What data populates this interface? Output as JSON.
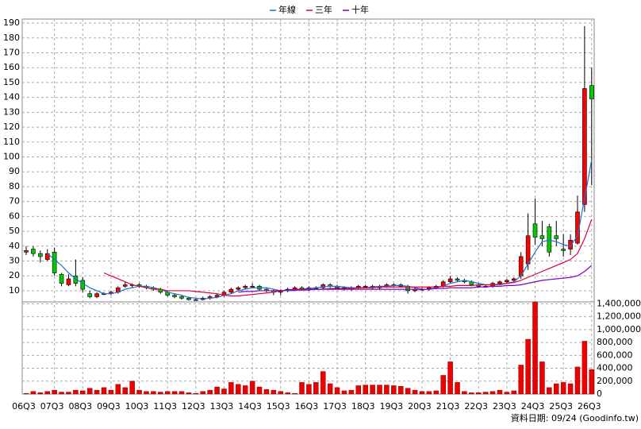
{
  "chart_data": {
    "type": "candlestick",
    "categories": [
      "06Q3",
      null,
      null,
      null,
      "07Q3",
      null,
      null,
      null,
      "08Q3",
      null,
      null,
      null,
      "09Q3",
      null,
      null,
      null,
      "10Q3",
      null,
      null,
      null,
      "11Q3",
      null,
      null,
      null,
      "12Q3",
      null,
      null,
      null,
      "13Q3",
      null,
      null,
      null,
      "14Q3",
      null,
      null,
      null,
      "15Q3",
      null,
      null,
      null,
      "16Q3",
      null,
      null,
      null,
      "17Q3",
      null,
      null,
      null,
      "18Q3",
      null,
      null,
      null,
      "19Q3",
      null,
      null,
      null,
      "20Q3",
      null,
      null,
      null,
      "21Q3",
      null,
      null,
      null,
      "22Q3",
      null,
      null,
      null,
      "23Q3",
      null,
      null,
      null,
      "24Q3",
      null,
      null,
      null,
      "25Q3",
      null,
      null,
      null,
      "26Q3"
    ],
    "open": [
      36,
      38,
      35,
      31,
      36,
      21,
      14,
      20,
      17,
      8,
      6,
      8,
      8,
      9,
      13,
      14,
      14,
      13,
      12,
      11,
      9,
      7,
      6,
      5,
      4,
      4,
      5,
      6,
      7,
      9,
      11,
      12,
      13,
      13,
      11,
      10,
      9,
      10,
      11,
      12,
      11,
      12,
      12,
      14,
      13,
      12,
      11,
      12,
      13,
      13,
      12,
      13,
      14,
      14,
      13,
      10,
      11,
      11,
      12,
      13,
      16,
      18,
      17,
      16,
      14,
      13,
      13,
      15,
      16,
      17,
      20,
      28,
      55,
      47,
      53,
      47,
      38,
      38,
      42,
      68,
      148
    ],
    "high": [
      40,
      40,
      37,
      38,
      39,
      22,
      21,
      31,
      19,
      10,
      9,
      9,
      10,
      13,
      16,
      15,
      15,
      14,
      13,
      12,
      10,
      8,
      7,
      6,
      5,
      6,
      7,
      8,
      10,
      12,
      13,
      14,
      15,
      14,
      12,
      11,
      11,
      12,
      13,
      13,
      13,
      13,
      15,
      15,
      14,
      13,
      13,
      14,
      14,
      14,
      14,
      15,
      15,
      15,
      14,
      12,
      12,
      13,
      14,
      17,
      20,
      19,
      18,
      17,
      15,
      14,
      16,
      17,
      18,
      19,
      36,
      62,
      72,
      57,
      55,
      57,
      48,
      48,
      74,
      188,
      160
    ],
    "low": [
      34,
      33,
      29,
      30,
      20,
      13,
      13,
      13,
      9,
      5,
      5,
      7,
      7,
      8,
      12,
      12,
      12,
      11,
      10,
      8,
      6,
      5,
      4,
      3.5,
      3.5,
      3.5,
      4,
      5,
      6,
      8,
      10,
      11,
      12,
      10,
      9,
      7,
      7,
      9,
      10,
      10,
      10,
      11,
      11,
      12,
      11,
      10,
      10,
      11,
      12,
      11,
      11,
      12,
      13,
      12,
      8,
      9,
      10,
      10,
      11,
      12,
      15,
      16,
      15,
      13,
      12,
      12,
      12,
      14,
      15,
      16,
      18,
      24,
      41,
      40,
      33,
      40,
      33,
      34,
      41,
      63,
      81
    ],
    "close": [
      37,
      35,
      33,
      35,
      22,
      15,
      18,
      15,
      11,
      6,
      8,
      8,
      9,
      12,
      14,
      14,
      13,
      12,
      11,
      9,
      7,
      6,
      5,
      4,
      4,
      5,
      6,
      7,
      9,
      11,
      12,
      13,
      13,
      11,
      10,
      9,
      10,
      11,
      12,
      11,
      12,
      12,
      14,
      13,
      12,
      11,
      12,
      13,
      13,
      12,
      13,
      14,
      14,
      13,
      10,
      11,
      11,
      12,
      13,
      16,
      18,
      17,
      16,
      14,
      13,
      13,
      15,
      16,
      17,
      18,
      33,
      47,
      46,
      45,
      36,
      45,
      37,
      44,
      63,
      146,
      139
    ],
    "up_color": "#ff0000",
    "down_color": "#00cc00",
    "series": [
      {
        "name": "年線",
        "color": "#1f6fd0",
        "values": [
          null,
          null,
          null,
          35,
          31,
          27,
          22,
          18,
          15,
          12,
          10,
          8,
          8,
          9,
          11,
          12,
          13,
          13,
          12,
          11,
          9,
          8,
          7,
          5.5,
          5,
          4.5,
          5,
          5.5,
          7,
          8,
          10,
          11,
          12,
          12,
          12,
          11,
          10,
          10,
          10,
          11,
          11.5,
          12,
          12.5,
          13,
          13,
          12.5,
          12,
          12,
          12,
          12.5,
          13,
          13,
          13.5,
          13.5,
          13,
          12,
          11,
          11,
          12,
          13,
          15,
          16,
          17,
          16,
          15,
          14,
          14,
          14,
          15,
          16,
          20,
          28,
          36,
          43,
          44,
          43,
          41,
          40,
          47,
          72,
          98
        ]
      },
      {
        "name": "三年",
        "color": "#dd0033",
        "values": [
          null,
          null,
          null,
          null,
          null,
          null,
          null,
          null,
          null,
          null,
          null,
          22,
          20,
          18,
          16,
          14,
          13,
          12,
          11,
          11,
          10,
          10,
          10,
          10,
          9.5,
          9,
          8.5,
          8,
          7,
          6.5,
          6.5,
          7,
          7.5,
          8,
          8.5,
          9,
          10,
          10.5,
          11,
          11,
          11,
          11,
          11,
          11.5,
          11.5,
          11.5,
          11.5,
          12,
          12,
          12,
          12.5,
          12.5,
          12.5,
          12.5,
          12.5,
          12.5,
          12.5,
          12.5,
          12.5,
          13,
          13,
          13.5,
          13.5,
          13.5,
          14,
          14,
          14,
          14.5,
          15,
          15.5,
          17,
          19,
          21,
          23,
          25,
          27,
          29,
          31,
          35,
          45,
          58
        ]
      },
      {
        "name": "十年",
        "color": "#8000c0",
        "values": [
          null,
          null,
          null,
          null,
          null,
          null,
          null,
          null,
          null,
          null,
          null,
          null,
          null,
          null,
          null,
          null,
          null,
          null,
          null,
          null,
          null,
          null,
          null,
          null,
          null,
          null,
          null,
          null,
          null,
          null,
          9,
          9.5,
          9.5,
          10,
          10,
          10,
          10,
          10.5,
          10.5,
          10.5,
          10.5,
          11,
          11,
          11,
          11,
          11,
          11,
          11,
          11,
          11,
          11,
          11,
          11,
          11,
          11,
          11,
          11,
          11,
          11.5,
          11.5,
          12,
          12,
          12,
          12,
          12.5,
          12.5,
          13,
          13,
          13.5,
          13.5,
          14,
          15,
          16,
          17,
          17.5,
          18,
          18.5,
          19,
          20,
          23,
          27
        ]
      }
    ],
    "ylim": [
      2.5,
      192.7
    ],
    "yticks": [
      10,
      20,
      30,
      40,
      50,
      60,
      70,
      80,
      90,
      100,
      110,
      120,
      130,
      140,
      150,
      160,
      170,
      180,
      190
    ],
    "grid": true,
    "volume": {
      "color": "#ee0000",
      "values": [
        10000,
        40000,
        20000,
        40000,
        60000,
        30000,
        30000,
        60000,
        50000,
        90000,
        60000,
        100000,
        60000,
        150000,
        100000,
        200000,
        60000,
        40000,
        40000,
        30000,
        40000,
        40000,
        40000,
        20000,
        10000,
        40000,
        60000,
        110000,
        80000,
        180000,
        150000,
        130000,
        200000,
        110000,
        70000,
        60000,
        40000,
        20000,
        10000,
        180000,
        150000,
        180000,
        350000,
        160000,
        100000,
        50000,
        60000,
        130000,
        140000,
        140000,
        140000,
        140000,
        130000,
        120000,
        90000,
        60000,
        40000,
        40000,
        50000,
        290000,
        500000,
        180000,
        40000,
        20000,
        20000,
        30000,
        40000,
        60000,
        30000,
        50000,
        450000,
        850000,
        1430000,
        500000,
        100000,
        160000,
        180000,
        160000,
        420000,
        820000,
        380000
      ],
      "ylim": [
        0,
        1430000
      ],
      "yticks": [
        0,
        {
          "value": 200000,
          "label": "200,000"
        },
        {
          "value": 400000,
          "label": "400,000"
        },
        {
          "value": 600000,
          "label": "600,000"
        },
        {
          "value": 800000,
          "label": "800,000"
        },
        {
          "value": 1000000,
          "label": "1,000,000"
        },
        {
          "value": 1200000,
          "label": "1,200,000"
        },
        {
          "value": 1400000,
          "label": "1,400,000"
        }
      ]
    },
    "source": "資料日期: 09/24  (Goodinfo.tw)"
  }
}
